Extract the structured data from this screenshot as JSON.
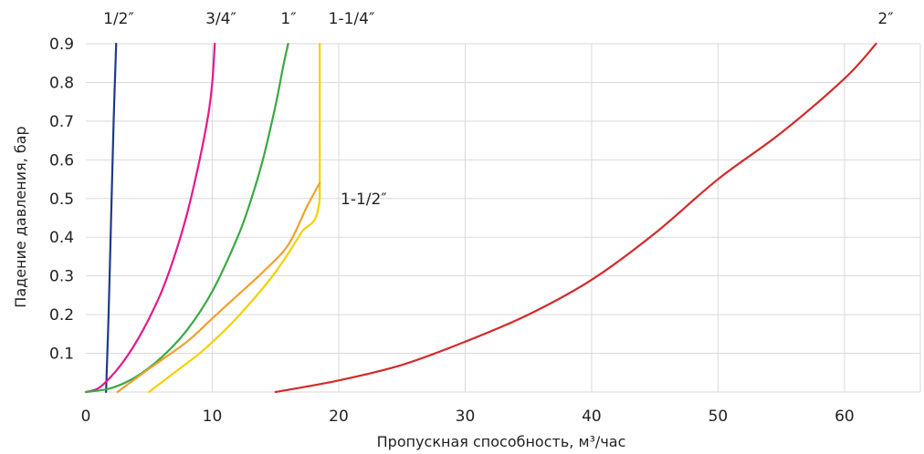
{
  "chart_data": {
    "type": "line",
    "xlabel": "Пропускная способность, м³/час",
    "ylabel": "Падение давления, бар",
    "xlim": [
      0,
      66
    ],
    "ylim": [
      0,
      0.9
    ],
    "xticks": [
      0,
      10,
      20,
      30,
      40,
      50,
      60
    ],
    "yticks": [
      0.1,
      0.2,
      0.3,
      0.4,
      0.5,
      0.6,
      0.7,
      0.8,
      0.9
    ],
    "ytick_labels": [
      "0.1",
      "0.2",
      "0.3",
      "0.4",
      "0.5",
      "0.6",
      "0.7",
      "0.8",
      "0.9"
    ],
    "grid": true,
    "series": [
      {
        "name": "1/2″",
        "color": "#1f3a8a",
        "points": [
          [
            1.6,
            0.0
          ],
          [
            1.8,
            0.2
          ],
          [
            2.0,
            0.45
          ],
          [
            2.2,
            0.7
          ],
          [
            2.4,
            0.9
          ]
        ]
      },
      {
        "name": "3/4″",
        "color": "#e6178c",
        "points": [
          [
            0,
            0.0
          ],
          [
            1,
            0.01
          ],
          [
            2,
            0.04
          ],
          [
            3,
            0.08
          ],
          [
            4,
            0.13
          ],
          [
            5,
            0.19
          ],
          [
            6,
            0.26
          ],
          [
            7,
            0.35
          ],
          [
            8,
            0.46
          ],
          [
            9,
            0.6
          ],
          [
            9.7,
            0.72
          ],
          [
            10,
            0.8
          ],
          [
            10.2,
            0.9
          ]
        ]
      },
      {
        "name": "1″",
        "color": "#3aa845",
        "points": [
          [
            0,
            0.0
          ],
          [
            2,
            0.01
          ],
          [
            4,
            0.04
          ],
          [
            6,
            0.09
          ],
          [
            8,
            0.16
          ],
          [
            10,
            0.26
          ],
          [
            12,
            0.4
          ],
          [
            13,
            0.49
          ],
          [
            14,
            0.6
          ],
          [
            15,
            0.74
          ],
          [
            15.6,
            0.84
          ],
          [
            16,
            0.9
          ]
        ]
      },
      {
        "name": "1-1/4″",
        "color": "#f5d000",
        "points": [
          [
            5,
            0.0
          ],
          [
            7,
            0.05
          ],
          [
            9,
            0.1
          ],
          [
            11,
            0.16
          ],
          [
            13,
            0.23
          ],
          [
            15,
            0.31
          ],
          [
            17,
            0.41
          ],
          [
            18.5,
            0.5
          ],
          [
            18.5,
            0.9
          ]
        ]
      },
      {
        "name": "1-1/2″",
        "color": "#f0a030",
        "points": [
          [
            2.5,
            0.0
          ],
          [
            5,
            0.06
          ],
          [
            8,
            0.13
          ],
          [
            10,
            0.19
          ],
          [
            12,
            0.25
          ],
          [
            14,
            0.31
          ],
          [
            16,
            0.38
          ],
          [
            17.5,
            0.48
          ],
          [
            18.5,
            0.54
          ]
        ]
      },
      {
        "name": "2″",
        "color": "#d42a2a",
        "points": [
          [
            15,
            0.0
          ],
          [
            20,
            0.03
          ],
          [
            25,
            0.07
          ],
          [
            30,
            0.13
          ],
          [
            35,
            0.2
          ],
          [
            40,
            0.29
          ],
          [
            45,
            0.41
          ],
          [
            50,
            0.55
          ],
          [
            55,
            0.67
          ],
          [
            60,
            0.81
          ],
          [
            62.5,
            0.9
          ]
        ]
      }
    ]
  }
}
